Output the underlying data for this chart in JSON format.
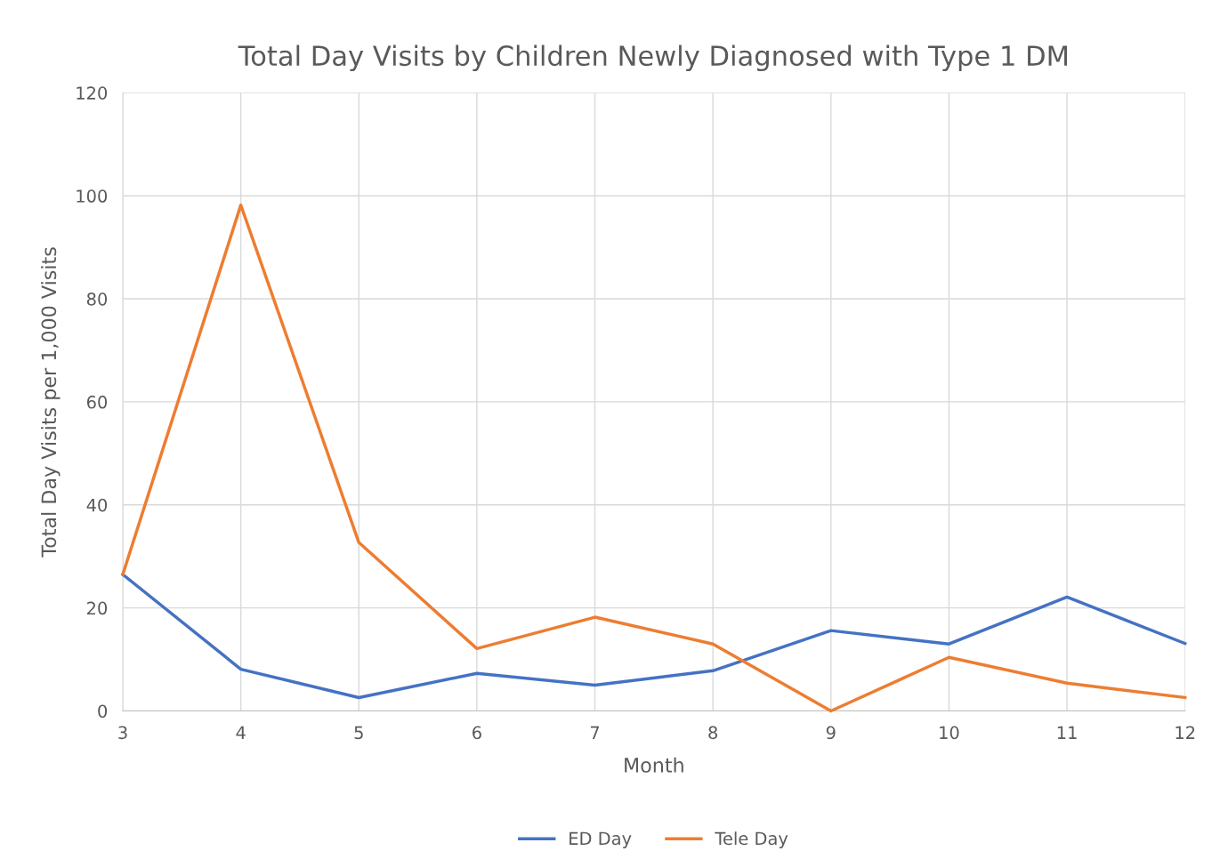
{
  "chart_data": {
    "type": "line",
    "title": "Total Day Visits by Children Newly Diagnosed with Type 1 DM",
    "xlabel": "Month",
    "ylabel": "Total Day Visits per 1,000 Visits",
    "x": [
      3,
      4,
      5,
      6,
      7,
      8,
      9,
      10,
      11,
      12
    ],
    "series": [
      {
        "name": "ED Day",
        "color": "#4472c4",
        "values": [
          26.5,
          8.1,
          2.6,
          7.3,
          5.0,
          7.8,
          15.6,
          13.0,
          22.1,
          13.1
        ]
      },
      {
        "name": "Tele Day",
        "color": "#ed7d31",
        "values": [
          26.5,
          98.2,
          32.7,
          12.1,
          18.2,
          13.0,
          0,
          10.4,
          5.4,
          2.6
        ]
      }
    ],
    "xlim": [
      3,
      12
    ],
    "xticks": [
      3,
      4,
      5,
      6,
      7,
      8,
      9,
      10,
      11,
      12
    ],
    "ylim": [
      0,
      120
    ],
    "yticks": [
      0,
      20,
      40,
      60,
      80,
      100,
      120
    ],
    "grid": true,
    "legend": "bottom",
    "marker": "none",
    "line_style": "solid"
  }
}
